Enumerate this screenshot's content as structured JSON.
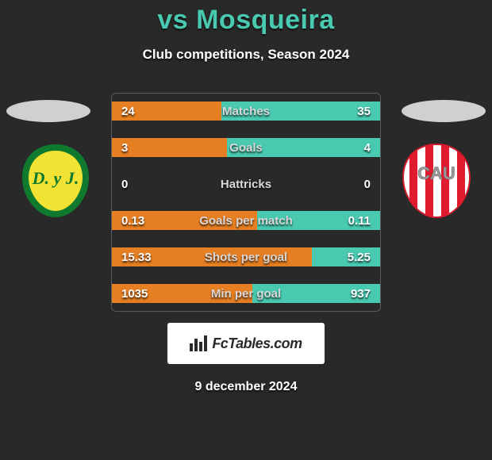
{
  "title": "vs Mosqueira",
  "subtitle": "Club competitions, Season 2024",
  "date": "9 december 2024",
  "footer_brand": "FcTables.com",
  "colors": {
    "title": "#48c9b0",
    "bar_left": "#e67e22",
    "bar_right": "#48c9b0",
    "background": "#292929",
    "box_border": "#5b5b5b",
    "ellipse": "#d0d0d0",
    "footer_bg": "#ffffff",
    "footer_text": "#2a2a2a"
  },
  "team_left": {
    "name": "D. y J.",
    "badge_colors": {
      "outer": "#0f7a2e",
      "inner": "#f2e233",
      "text": "#0f7a2e"
    }
  },
  "team_right": {
    "name": "CAU",
    "badge_colors": {
      "bg": "#ffffff",
      "stripe": "#e01b2f",
      "text": "#b0b0b0"
    }
  },
  "stats": [
    {
      "label": "Matches",
      "left_val": "24",
      "right_val": "35",
      "left_pct": 40.7,
      "right_pct": 59.3
    },
    {
      "label": "Goals",
      "left_val": "3",
      "right_val": "4",
      "left_pct": 42.9,
      "right_pct": 57.1
    },
    {
      "label": "Hattricks",
      "left_val": "0",
      "right_val": "0",
      "left_pct": 0,
      "right_pct": 0
    },
    {
      "label": "Goals per match",
      "left_val": "0.13",
      "right_val": "0.11",
      "left_pct": 54.2,
      "right_pct": 45.8
    },
    {
      "label": "Shots per goal",
      "left_val": "15.33",
      "right_val": "5.25",
      "left_pct": 74.5,
      "right_pct": 25.5
    },
    {
      "label": "Min per goal",
      "left_val": "1035",
      "right_val": "937",
      "left_pct": 52.5,
      "right_pct": 47.5
    }
  ]
}
